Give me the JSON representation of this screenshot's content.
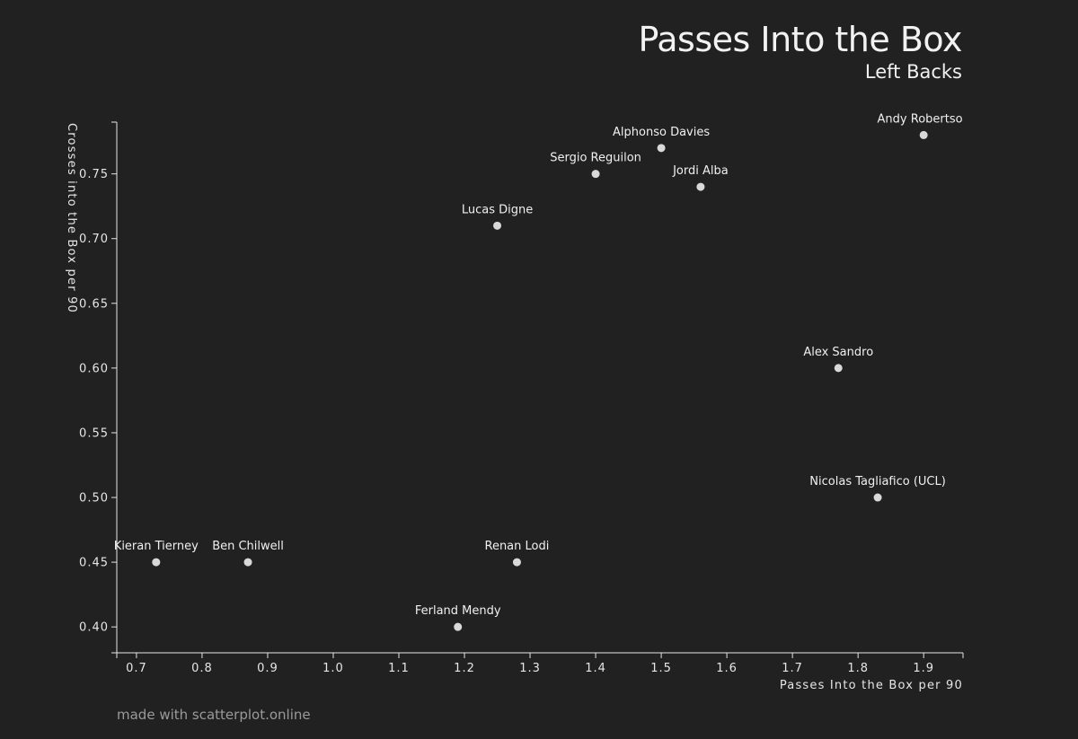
{
  "footer_text": "made with scatterplot.online",
  "chart_data": {
    "type": "scatter",
    "title": "Passes Into the Box",
    "subtitle": "Left Backs",
    "xlabel": "Passes Into the Box per 90",
    "ylabel": "Crosses into the Box per 90",
    "xlim": [
      0.67,
      1.96
    ],
    "ylim": [
      0.38,
      0.79
    ],
    "x_ticks": [
      0.7,
      0.8,
      0.9,
      1.0,
      1.1,
      1.2,
      1.3,
      1.4,
      1.5,
      1.6,
      1.7,
      1.8,
      1.9
    ],
    "x_tick_labels": [
      "0.7",
      "0.8",
      "0.9",
      "1.0",
      "1.1",
      "1.2",
      "1.3",
      "1.4",
      "1.5",
      "1.6",
      "1.7",
      "1.8",
      "1.9"
    ],
    "y_ticks": [
      0.4,
      0.45,
      0.5,
      0.55,
      0.6,
      0.65,
      0.7,
      0.75
    ],
    "y_tick_labels": [
      "0.40",
      "0.45",
      "0.50",
      "0.55",
      "0.60",
      "0.65",
      "0.70",
      "0.75"
    ],
    "grid": false,
    "point_color": "#d9d9d9",
    "background": "#212121",
    "points": [
      {
        "label": "Andy Robertson",
        "x": 1.9,
        "y": 0.78
      },
      {
        "label": "Alphonso Davies",
        "x": 1.5,
        "y": 0.77
      },
      {
        "label": "Sergio Reguilon",
        "x": 1.4,
        "y": 0.75
      },
      {
        "label": "Jordi Alba",
        "x": 1.56,
        "y": 0.74
      },
      {
        "label": "Lucas Digne",
        "x": 1.25,
        "y": 0.71
      },
      {
        "label": "Alex Sandro",
        "x": 1.77,
        "y": 0.6
      },
      {
        "label": "Nicolas Tagliafico (UCL)",
        "x": 1.83,
        "y": 0.5
      },
      {
        "label": "Kieran Tierney",
        "x": 0.73,
        "y": 0.45
      },
      {
        "label": "Ben Chilwell",
        "x": 0.87,
        "y": 0.45
      },
      {
        "label": "Renan Lodi",
        "x": 1.28,
        "y": 0.45
      },
      {
        "label": "Ferland Mendy",
        "x": 1.19,
        "y": 0.4
      }
    ]
  }
}
